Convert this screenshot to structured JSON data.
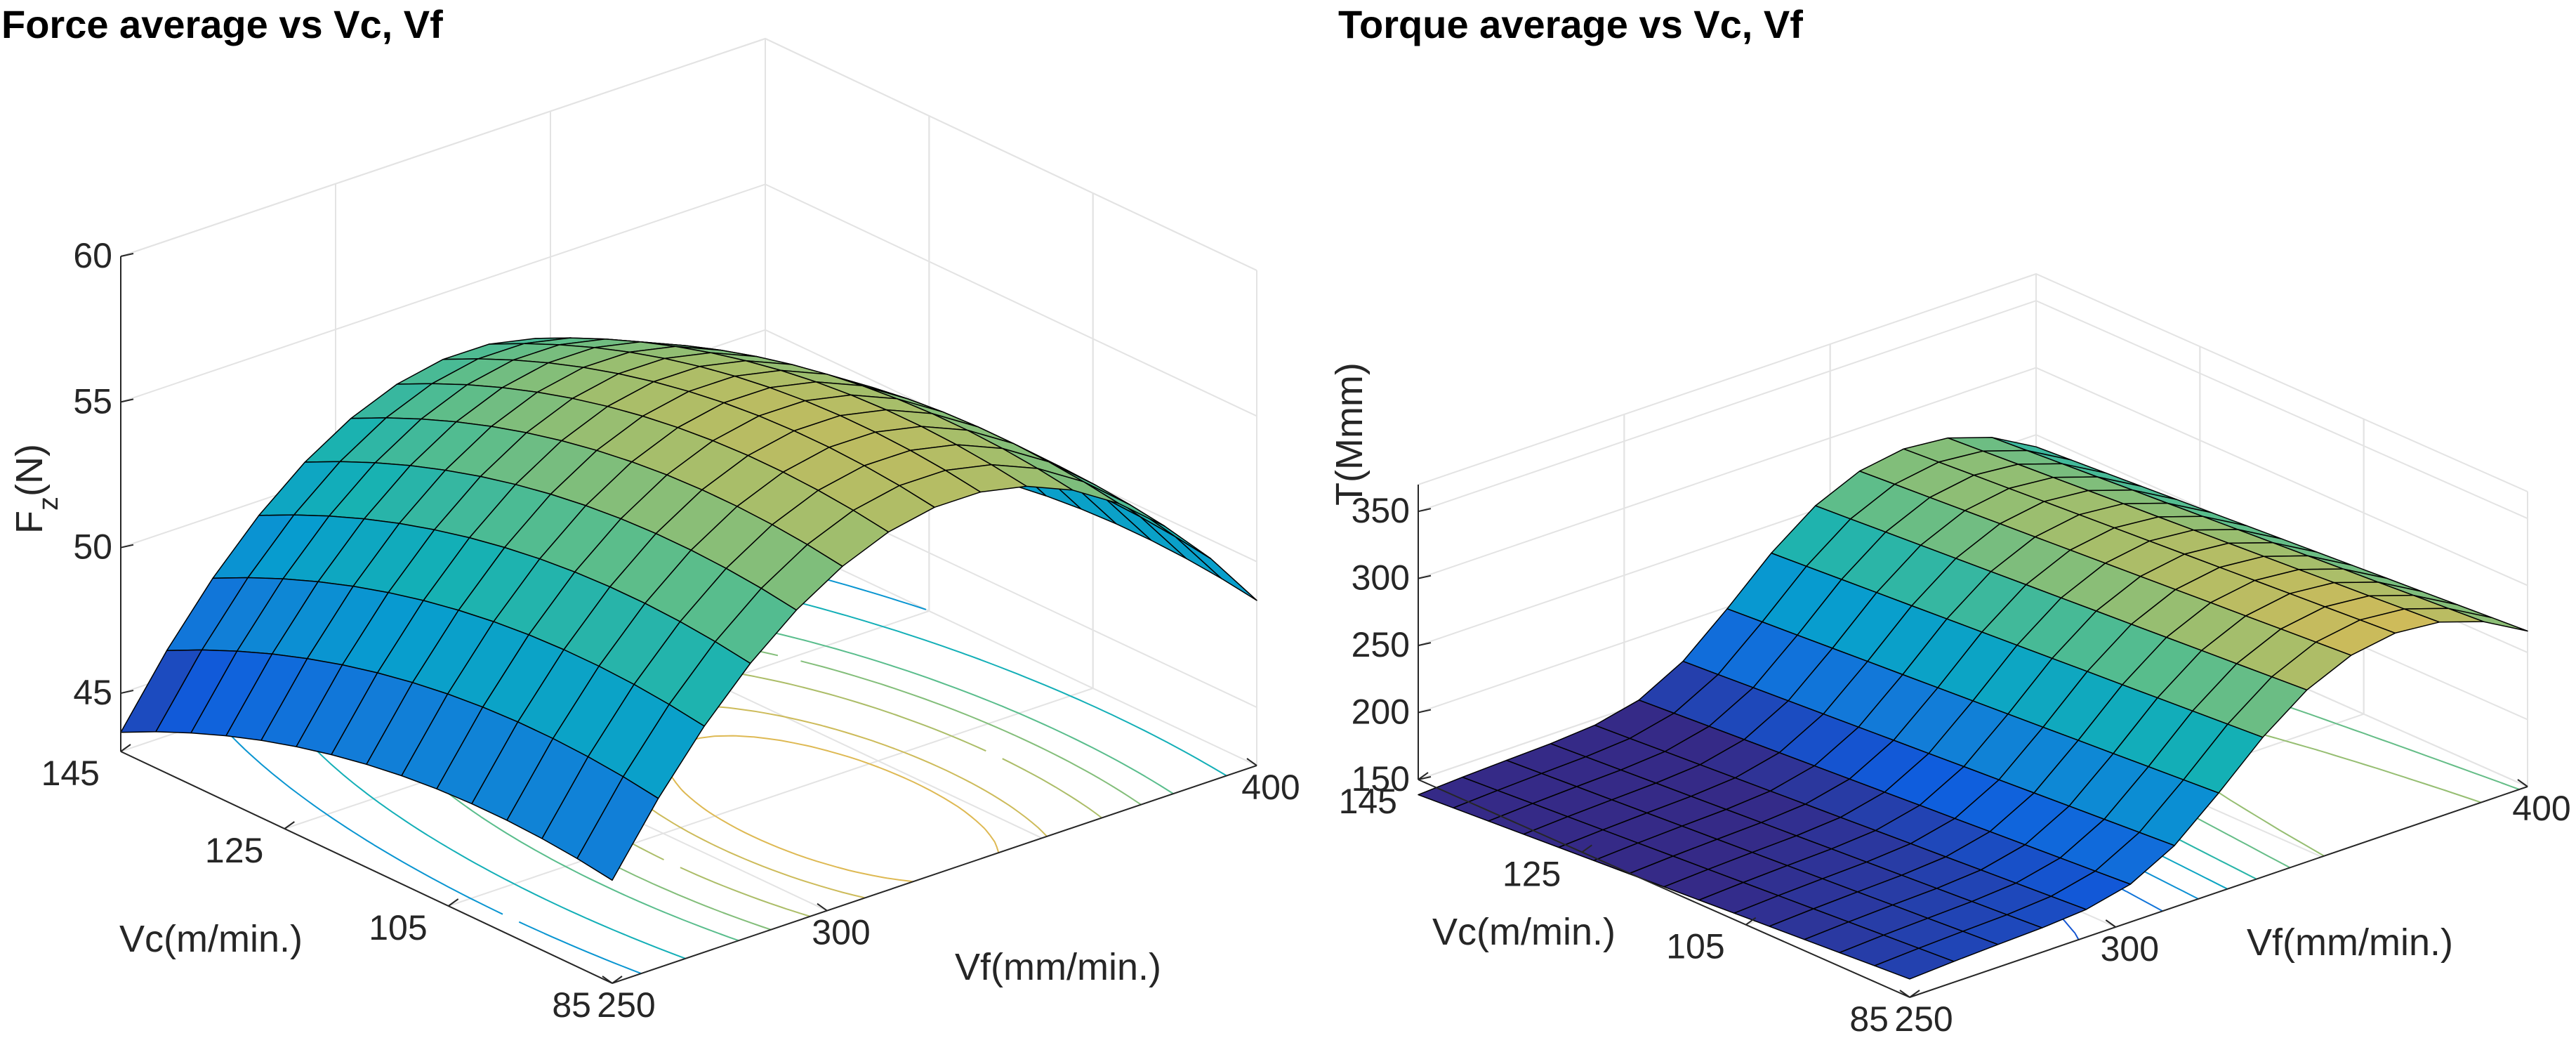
{
  "chart_data": [
    {
      "type": "surface",
      "title": "Force average vs Vc, Vf",
      "xlabel": "Vf(mm/min.)",
      "ylabel": "Vc(m/min.)",
      "zlabel_main": "F",
      "zlabel_sub": "z",
      "zlabel_unit": "(N)",
      "x_range": [
        250,
        400
      ],
      "y_range": [
        85,
        145
      ],
      "z_range": [
        43,
        60
      ],
      "x_ticks": [
        "250",
        "300",
        "400"
      ],
      "y_ticks": [
        "85",
        "105",
        "125",
        "145"
      ],
      "z_ticks": [
        "45",
        "50",
        "55",
        "60"
      ],
      "surface_fit": "Fz = 56 - 8*((Vf-330)/75)^2 - 4*((Vc-100)/50)^2",
      "colormap": "parula",
      "base_contours": true
    },
    {
      "type": "surface",
      "title": "Torque average vs Vc, Vf",
      "xlabel": "Vf(mm/min.)",
      "ylabel": "Vc(m/min.)",
      "zlabel": "T(Mmm)",
      "x_range": [
        250,
        400
      ],
      "y_range": [
        85,
        145
      ],
      "z_range": [
        150,
        370
      ],
      "x_ticks": [
        "250",
        "300",
        "400"
      ],
      "y_ticks": [
        "85",
        "105",
        "125",
        "145"
      ],
      "z_ticks": [
        "150",
        "200",
        "250",
        "300",
        "350"
      ],
      "surface_fit": "T rises from ~165 at Vf=250 to a ridge ~300 near Vf=370, lower toward Vc=145",
      "colormap": "parula",
      "base_contours": true
    }
  ]
}
